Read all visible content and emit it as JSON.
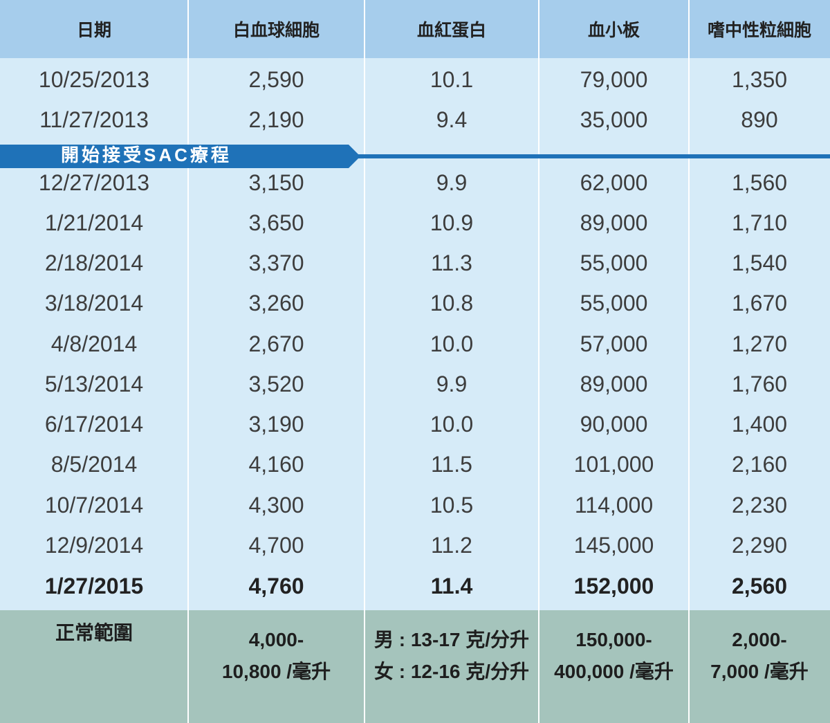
{
  "colors": {
    "header_bg": "#a6cdec",
    "body_bg": "#d6ebf8",
    "footer_bg": "#a5c4bc",
    "banner": "#1f72b8"
  },
  "headers": [
    "日期",
    "白血球細胞",
    "血紅蛋白",
    "血小板",
    "嗜中性粒細胞"
  ],
  "rows_before": [
    [
      "10/25/2013",
      "2,590",
      "10.1",
      "79,000",
      "1,350"
    ],
    [
      "11/27/2013",
      "2,190",
      "9.4",
      "35,000",
      "890"
    ]
  ],
  "therapy_label": "開始接受SAC療程",
  "rows_after": [
    [
      "12/27/2013",
      "3,150",
      "9.9",
      "62,000",
      "1,560"
    ],
    [
      "1/21/2014",
      "3,650",
      "10.9",
      "89,000",
      "1,710"
    ],
    [
      "2/18/2014",
      "3,370",
      "11.3",
      "55,000",
      "1,540"
    ],
    [
      "3/18/2014",
      "3,260",
      "10.8",
      "55,000",
      "1,670"
    ],
    [
      "4/8/2014",
      "2,670",
      "10.0",
      "57,000",
      "1,270"
    ],
    [
      "5/13/2014",
      "3,520",
      "9.9",
      "89,000",
      "1,760"
    ],
    [
      "6/17/2014",
      "3,190",
      "10.0",
      "90,000",
      "1,400"
    ],
    [
      "8/5/2014",
      "4,160",
      "11.5",
      "101,000",
      "2,160"
    ],
    [
      "10/7/2014",
      "4,300",
      "10.5",
      "114,000",
      "2,230"
    ],
    [
      "12/9/2014",
      "4,700",
      "11.2",
      "145,000",
      "2,290"
    ]
  ],
  "last_row": [
    "1/27/2015",
    "4,760",
    "11.4",
    "152,000",
    "2,560"
  ],
  "normal_range": {
    "label": "正常範圍",
    "wbc": [
      "4,000-",
      "10,800 /毫升"
    ],
    "hgb": [
      "男 : 13-17 克/分升",
      "女 : 12-16 克/分升"
    ],
    "plt": [
      "150,000-",
      "400,000 /毫升"
    ],
    "neut": [
      "2,000-",
      "7,000 /毫升"
    ]
  }
}
